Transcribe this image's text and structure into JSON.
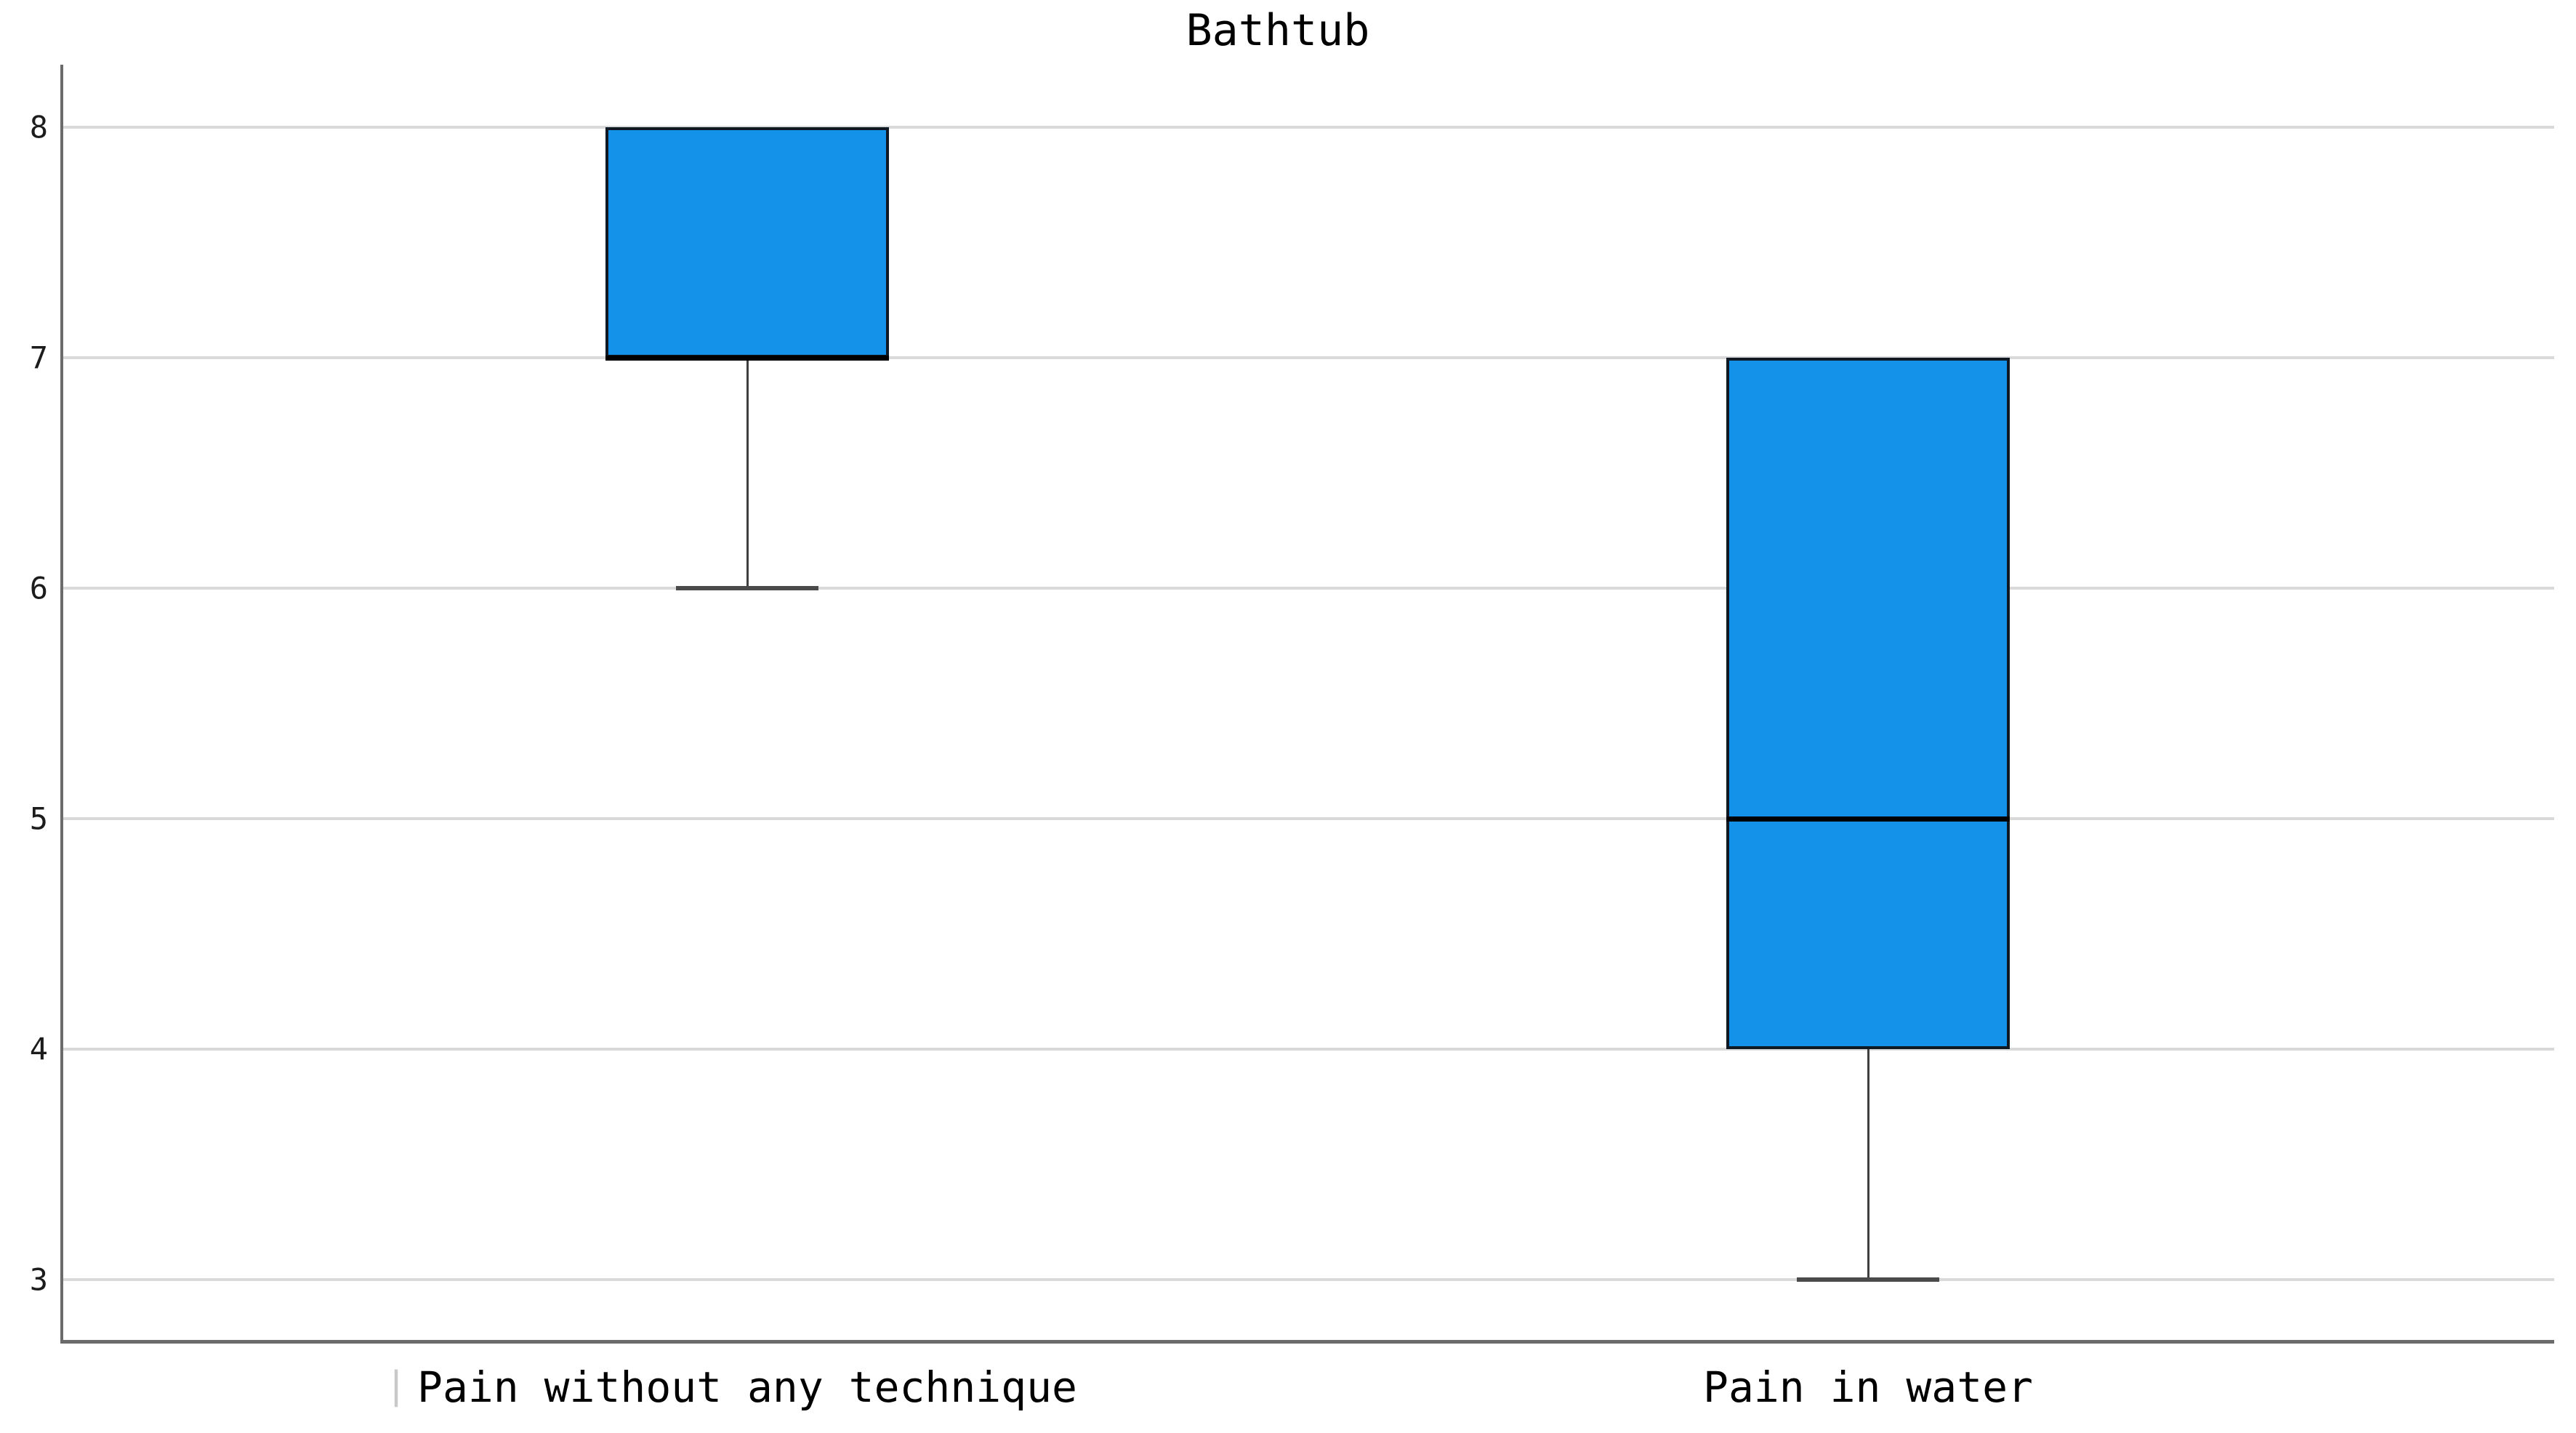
{
  "chart_data": {
    "type": "boxplot",
    "title": "Bathtub",
    "categories": [
      "Pain without any technique",
      "Pain in water"
    ],
    "boxes": [
      {
        "category": "Pain without any technique",
        "whisker_low": 6,
        "q1": 7,
        "median": 7,
        "q3": 8,
        "whisker_high": 8
      },
      {
        "category": "Pain in water",
        "whisker_low": 3,
        "q1": 4,
        "median": 5,
        "q3": 7,
        "whisker_high": 7
      }
    ],
    "y_ticks": [
      "8",
      "7",
      "6",
      "5",
      "4",
      "3"
    ],
    "y_tick_values": [
      8,
      7,
      6,
      5,
      4,
      3
    ],
    "ylim": [
      2.75,
      8.27
    ],
    "grid": "horizontal",
    "legend": "none",
    "stray_marker_glyph": "|",
    "colors": {
      "box_fill": "#1491e9",
      "box_border": "#0f1923",
      "median": "#000000",
      "whisker": "#3f3f3f",
      "gridline": "#d9d9d9",
      "axis": "#6b6b6b",
      "tick_text": "#1c1c1c",
      "title_text": "#000000"
    }
  }
}
